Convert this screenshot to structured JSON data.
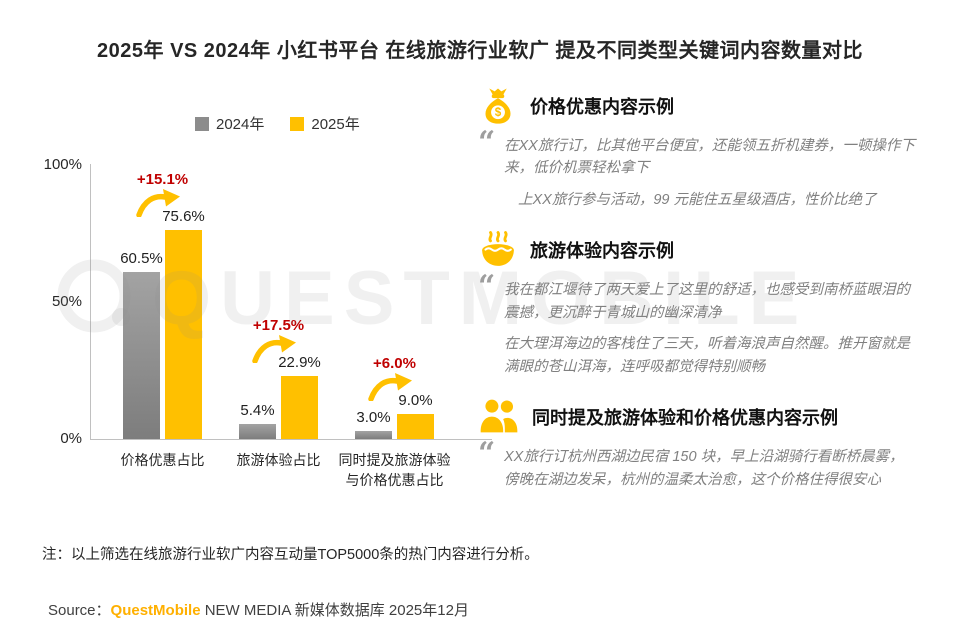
{
  "title": "2025年 VS 2024年 小红书平台 在线旅游行业软广 提及不同类型关键词内容数量对比",
  "watermark": "QUESTMOBILE",
  "colors": {
    "y2024": "#8C8C8C",
    "y2025": "#FFC000",
    "change": "#C00000",
    "brand": "#FFB000"
  },
  "legend": [
    {
      "label": "2024年",
      "color": "#8C8C8C"
    },
    {
      "label": "2025年",
      "color": "#FFC000"
    }
  ],
  "chart_data": {
    "type": "bar",
    "categories": [
      "价格优惠占比",
      "旅游体验占比",
      "同时提及旅游体验\n与价格优惠占比"
    ],
    "series": [
      {
        "name": "2024年",
        "color": "#8C8C8C",
        "values": [
          60.5,
          5.4,
          3.0
        ]
      },
      {
        "name": "2025年",
        "color": "#FFC000",
        "values": [
          75.6,
          22.9,
          9.0
        ]
      }
    ],
    "value_labels": [
      [
        "60.5%",
        "5.4%",
        "3.0%"
      ],
      [
        "75.6%",
        "22.9%",
        "9.0%"
      ]
    ],
    "changes": [
      "+15.1%",
      "+17.5%",
      "+6.0%"
    ],
    "yticks": [
      "100%",
      "50%",
      "0%"
    ],
    "ylim": [
      0,
      100
    ],
    "grid": false,
    "legend_position": "top"
  },
  "examples": [
    {
      "icon": "money-bag-icon",
      "heading": "价格优惠内容示例",
      "quotes": [
        "在XX旅行订，比其他平台便宜，还能领五折机建券，一顿操作下来，低价机票轻松拿下",
        "上XX旅行参与活动，99 元能住五星级酒店，性价比绝了"
      ]
    },
    {
      "icon": "hot-spring-icon",
      "heading": "旅游体验内容示例",
      "quotes": [
        "我在都江堰待了两天爱上了这里的舒适，也感受到南桥蓝眼泪的震撼，更沉醉于青城山的幽深清净",
        "在大理洱海边的客栈住了三天，听着海浪声自然醒。推开窗就是满眼的苍山洱海，连呼吸都觉得特别顺畅"
      ]
    },
    {
      "icon": "two-people-icon",
      "heading": "同时提及旅游体验和价格优惠内容示例",
      "quotes": [
        "XX旅行订杭州西湖边民宿 150 块，早上沿湖骑行看断桥晨雾，傍晚在湖边发呆，杭州的温柔太治愈，这个价格住得很安心"
      ]
    }
  ],
  "note": "注：以上筛选在线旅游行业软广内容互动量TOP5000条的热门内容进行分析。",
  "source": {
    "label": "Source：",
    "brand": "QuestMobile",
    "suffix": " NEW MEDIA 新媒体数据库 2025年12月"
  }
}
